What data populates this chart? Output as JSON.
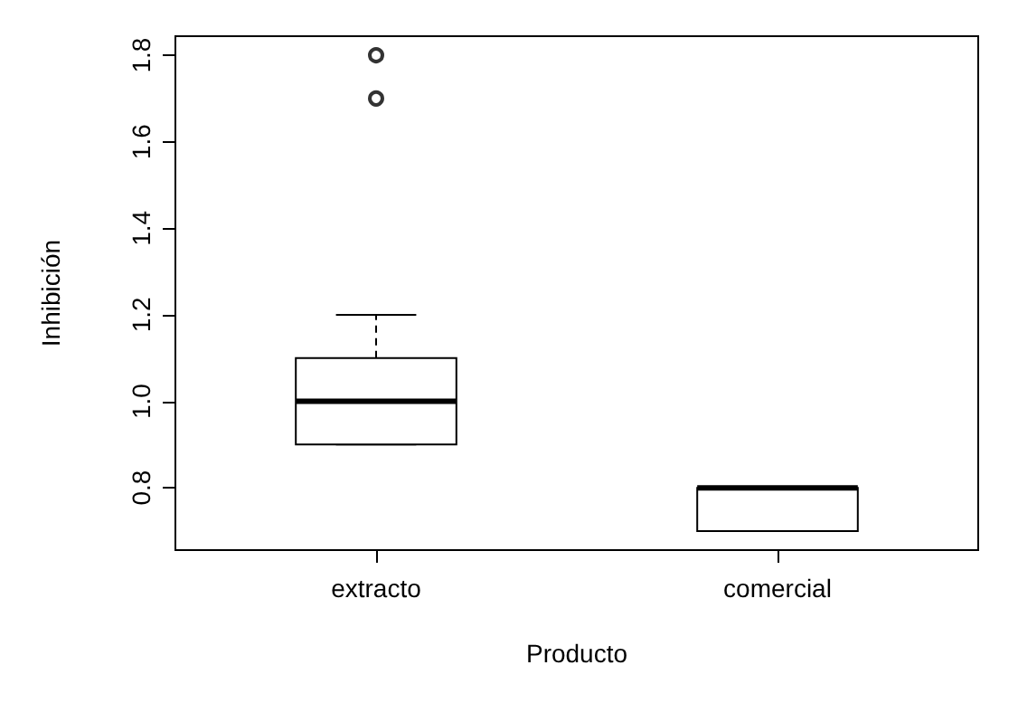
{
  "chart_data": {
    "type": "box",
    "xlabel": "Producto",
    "ylabel": "Inhibición",
    "categories": [
      "extracto",
      "comercial"
    ],
    "boxes": [
      {
        "low": 0.9,
        "q1": 0.9,
        "median": 1.0,
        "q3": 1.1,
        "high": 1.2,
        "outliers": [
          1.7,
          1.8
        ]
      },
      {
        "low": 0.7,
        "q1": 0.7,
        "median": 0.8,
        "q3": 0.8,
        "high": 0.8
      }
    ],
    "color": "#000000",
    "ylim": [
      0.656,
      1.844
    ],
    "yticks": [
      0.8,
      {
        "value": 1,
        "label": "1.0"
      },
      1.2,
      1.4,
      1.6,
      1.8
    ],
    "grid": false,
    "marker": "circle"
  }
}
